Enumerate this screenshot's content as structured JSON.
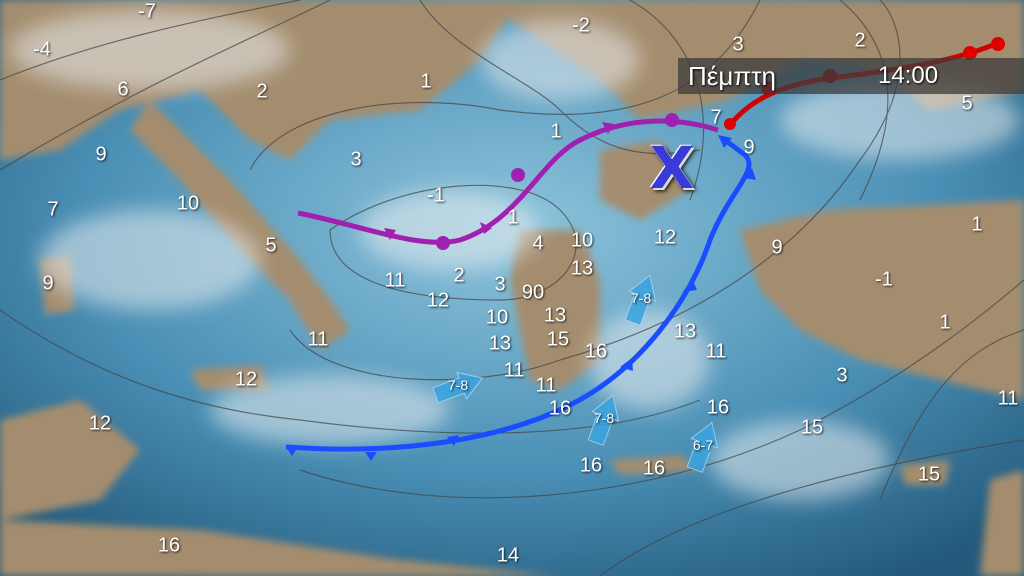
{
  "header": {
    "day": "Πέμπτη",
    "time": "14:00"
  },
  "low_pressure": {
    "symbol": "X",
    "color": "#3333cc"
  },
  "colors": {
    "sea": "#2f6f95",
    "land": "#a48d6e",
    "cold_front": "#1a4dff",
    "warm_front": "#e00000",
    "occluded_front": "#a020b0",
    "isobar": "#444444",
    "wind_arrow": "#3aa3e0"
  },
  "temperatures": [
    "-7",
    "-4",
    "6",
    "2",
    "1",
    "-2",
    "3",
    "2",
    "5",
    "9",
    "3",
    "1",
    "7",
    "9",
    "7",
    "10",
    "-1",
    "1",
    "4",
    "10",
    "12",
    "1",
    "5",
    "9",
    "13",
    "9",
    "11",
    "2",
    "3",
    "90",
    "-1",
    "12",
    "10",
    "13",
    "1",
    "11",
    "13",
    "15",
    "16",
    "13",
    "11",
    "11",
    "11",
    "12",
    "3",
    "11",
    "12",
    "16",
    "16",
    "15",
    "16",
    "16",
    "15",
    "16",
    "14"
  ],
  "wind_arrows": [
    {
      "label": "7-8",
      "direction": "north-northeast"
    },
    {
      "label": "7-8",
      "direction": "east-northeast"
    },
    {
      "label": "7-8",
      "direction": "north-northeast"
    },
    {
      "label": "6-7",
      "direction": "north-northeast"
    }
  ]
}
